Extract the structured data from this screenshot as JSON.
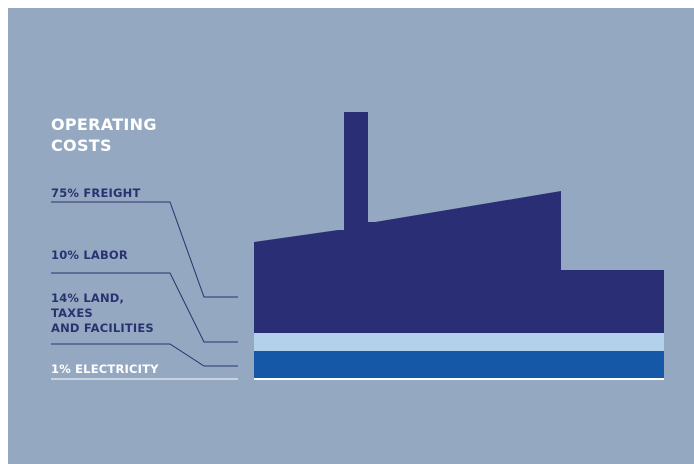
{
  "title": {
    "line1": "OPERATING",
    "line2": "COSTS"
  },
  "segments": [
    {
      "id": "freight",
      "lines": [
        "75% FREIGHT"
      ],
      "percent": 75,
      "color": "#2a2f75"
    },
    {
      "id": "labor",
      "lines": [
        "10% LABOR"
      ],
      "percent": 10,
      "color": "#b4d1ec"
    },
    {
      "id": "land",
      "lines": [
        "14% LAND,",
        "TAXES",
        "AND FACILITIES"
      ],
      "percent": 14,
      "color": "#1558a7"
    },
    {
      "id": "electricity",
      "lines": [
        "1% ELECTRICITY"
      ],
      "percent": 1,
      "color": "#ffffff"
    }
  ],
  "colors": {
    "background": "#94a9c1",
    "title": "#ffffff",
    "label": "#2a3170",
    "leader_line": "#2a3170"
  }
}
